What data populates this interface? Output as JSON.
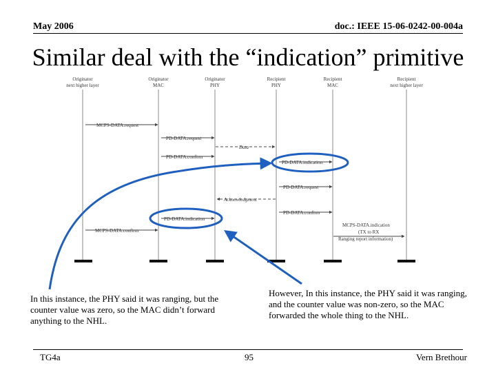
{
  "header": {
    "date": "May 2006",
    "doc_id": "doc.: IEEE 15-06-0242-00-004a"
  },
  "title": "Similar deal with the “indication” primitive",
  "diagram": {
    "lifelines": [
      {
        "line1": "Originator",
        "line2": "next higher layer"
      },
      {
        "line1": "Originator",
        "line2": "MAC"
      },
      {
        "line1": "Originator",
        "line2": "PHY"
      },
      {
        "line1": "Recipient",
        "line2": "PHY"
      },
      {
        "line1": "Recipient",
        "line2": "MAC"
      },
      {
        "line1": "Recipient",
        "line2": "next higher layer"
      }
    ],
    "messages": [
      "MCPS-DATA.request",
      "PD-DATA.request",
      "Data",
      "PD-DATA.confirm",
      "PD-DATA.indication",
      "PD-DATA.request",
      "Acknowledgment",
      "PD-DATA.confirm",
      "PD-DATA.indication",
      "MCPS-DATA.confirm"
    ],
    "recipient_indication": {
      "line1": "MCPS-DATA.indication",
      "line2": "(TX to RX",
      "line3": "Ranging report information)"
    },
    "highlight_color": "#1f5fbf"
  },
  "notes": {
    "left": "In this instance, the PHY said it was ranging, but the counter value was zero, so the MAC didn’t forward anything to the NHL.",
    "right": "However, In this instance, the PHY said it was ranging, and the counter value was non-zero, so the MAC forwarded the whole thing to the NHL."
  },
  "footer": {
    "left": "TG4a",
    "page": "95",
    "author": "Vern Brethour"
  }
}
